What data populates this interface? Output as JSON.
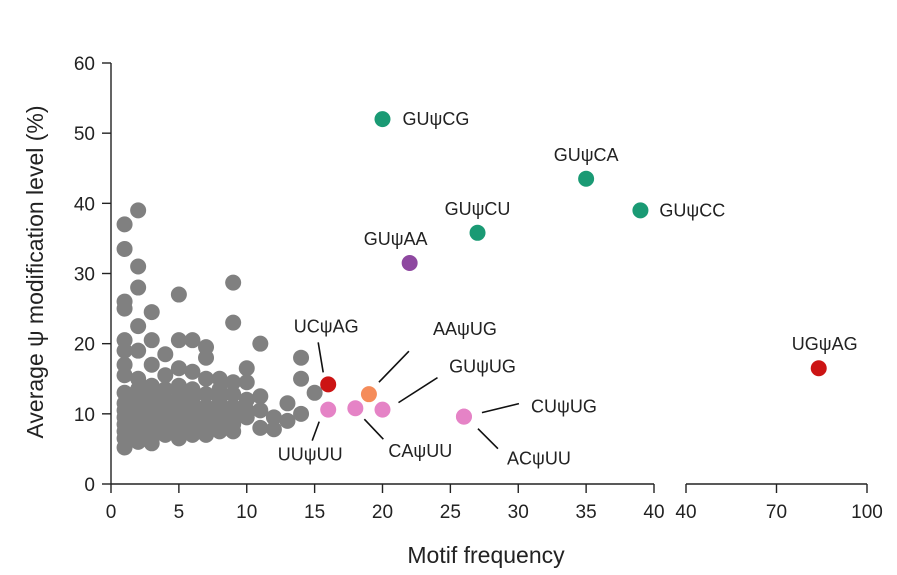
{
  "chart_data": {
    "type": "scatter",
    "xlabel": "Motif frequency",
    "ylabel": "Average ψ modification level (%)",
    "ylim": [
      0,
      60
    ],
    "yticks": [
      0,
      10,
      20,
      30,
      40,
      50,
      60
    ],
    "x_axis_segments": [
      {
        "range": [
          0,
          40
        ],
        "ticks": [
          0,
          5,
          10,
          15,
          20,
          25,
          30,
          35,
          40
        ]
      },
      {
        "range": [
          40,
          100
        ],
        "ticks": [
          40,
          70,
          100
        ]
      }
    ],
    "colors": {
      "background": "#808080",
      "GUψN": "#1a9a74",
      "GUψAA": "#8e48a0",
      "red": "#cc1414",
      "orange": "#f58c5a",
      "pink": "#e583c6"
    },
    "background_points": [
      {
        "x": 1,
        "y": 37
      },
      {
        "x": 2,
        "y": 39
      },
      {
        "x": 1,
        "y": 33.5
      },
      {
        "x": 2,
        "y": 31
      },
      {
        "x": 2,
        "y": 28
      },
      {
        "x": 1,
        "y": 26
      },
      {
        "x": 1,
        "y": 25
      },
      {
        "x": 3,
        "y": 24.5
      },
      {
        "x": 5,
        "y": 27
      },
      {
        "x": 9,
        "y": 28.7
      },
      {
        "x": 9,
        "y": 23
      },
      {
        "x": 2,
        "y": 22.5
      },
      {
        "x": 1,
        "y": 20.5
      },
      {
        "x": 3,
        "y": 20.5
      },
      {
        "x": 5,
        "y": 20.5
      },
      {
        "x": 6,
        "y": 20.5
      },
      {
        "x": 7,
        "y": 19.5
      },
      {
        "x": 11,
        "y": 20
      },
      {
        "x": 1,
        "y": 19
      },
      {
        "x": 2,
        "y": 19
      },
      {
        "x": 4,
        "y": 18.5
      },
      {
        "x": 7,
        "y": 18
      },
      {
        "x": 14,
        "y": 18
      },
      {
        "x": 1,
        "y": 17
      },
      {
        "x": 3,
        "y": 17
      },
      {
        "x": 5,
        "y": 16.5
      },
      {
        "x": 6,
        "y": 16
      },
      {
        "x": 10,
        "y": 16.5
      },
      {
        "x": 1,
        "y": 15.5
      },
      {
        "x": 2,
        "y": 15
      },
      {
        "x": 4,
        "y": 15.5
      },
      {
        "x": 7,
        "y": 15
      },
      {
        "x": 8,
        "y": 15
      },
      {
        "x": 14,
        "y": 15
      },
      {
        "x": 9,
        "y": 14.5
      },
      {
        "x": 10,
        "y": 14.5
      },
      {
        "x": 3,
        "y": 14
      },
      {
        "x": 5,
        "y": 14
      },
      {
        "x": 2,
        "y": 13.5
      },
      {
        "x": 4,
        "y": 13.5
      },
      {
        "x": 6,
        "y": 13.5
      },
      {
        "x": 8,
        "y": 13.5
      },
      {
        "x": 1,
        "y": 13
      },
      {
        "x": 3,
        "y": 13
      },
      {
        "x": 7,
        "y": 12.8
      },
      {
        "x": 9,
        "y": 12.8
      },
      {
        "x": 11,
        "y": 12.5
      },
      {
        "x": 15,
        "y": 13
      },
      {
        "x": 2,
        "y": 12.5
      },
      {
        "x": 5,
        "y": 12.5
      },
      {
        "x": 4,
        "y": 12
      },
      {
        "x": 6,
        "y": 12
      },
      {
        "x": 8,
        "y": 12
      },
      {
        "x": 10,
        "y": 12
      },
      {
        "x": 1,
        "y": 11.5
      },
      {
        "x": 3,
        "y": 11.5
      },
      {
        "x": 13,
        "y": 11.5
      },
      {
        "x": 2,
        "y": 11
      },
      {
        "x": 4,
        "y": 11
      },
      {
        "x": 5,
        "y": 11
      },
      {
        "x": 7,
        "y": 11
      },
      {
        "x": 9,
        "y": 11
      },
      {
        "x": 11,
        "y": 10.5
      },
      {
        "x": 1,
        "y": 10.5
      },
      {
        "x": 3,
        "y": 10.5
      },
      {
        "x": 6,
        "y": 10.5
      },
      {
        "x": 8,
        "y": 10.5
      },
      {
        "x": 10,
        "y": 10.5
      },
      {
        "x": 2,
        "y": 10
      },
      {
        "x": 4,
        "y": 10
      },
      {
        "x": 5,
        "y": 10
      },
      {
        "x": 7,
        "y": 10
      },
      {
        "x": 9,
        "y": 10
      },
      {
        "x": 14,
        "y": 10
      },
      {
        "x": 1,
        "y": 9.5
      },
      {
        "x": 3,
        "y": 9.5
      },
      {
        "x": 12,
        "y": 9.5
      },
      {
        "x": 13,
        "y": 9
      },
      {
        "x": 2,
        "y": 9
      },
      {
        "x": 4,
        "y": 9
      },
      {
        "x": 6,
        "y": 9
      },
      {
        "x": 8,
        "y": 9
      },
      {
        "x": 10,
        "y": 9.5
      },
      {
        "x": 1,
        "y": 8.5
      },
      {
        "x": 3,
        "y": 8.5
      },
      {
        "x": 5,
        "y": 8.5
      },
      {
        "x": 7,
        "y": 8.5
      },
      {
        "x": 9,
        "y": 8.5
      },
      {
        "x": 2,
        "y": 8
      },
      {
        "x": 4,
        "y": 8
      },
      {
        "x": 6,
        "y": 8
      },
      {
        "x": 11,
        "y": 8
      },
      {
        "x": 12,
        "y": 7.8
      },
      {
        "x": 1,
        "y": 7.5
      },
      {
        "x": 3,
        "y": 7.5
      },
      {
        "x": 5,
        "y": 7.5
      },
      {
        "x": 8,
        "y": 7.5
      },
      {
        "x": 9,
        "y": 7.5
      },
      {
        "x": 2,
        "y": 7
      },
      {
        "x": 4,
        "y": 7
      },
      {
        "x": 6,
        "y": 7
      },
      {
        "x": 7,
        "y": 7
      },
      {
        "x": 1,
        "y": 6.5
      },
      {
        "x": 3,
        "y": 6.5
      },
      {
        "x": 5,
        "y": 6.5
      },
      {
        "x": 2,
        "y": 6
      },
      {
        "x": 3,
        "y": 5.8
      },
      {
        "x": 1,
        "y": 5.2
      }
    ],
    "labeled_points": [
      {
        "label": "GUψCG",
        "x": 20,
        "y": 52,
        "color": "GUψN"
      },
      {
        "label": "GUψCA",
        "x": 35,
        "y": 43.5,
        "color": "GUψN"
      },
      {
        "label": "GUψCC",
        "x": 39,
        "y": 39,
        "color": "GUψN"
      },
      {
        "label": "GUψCU",
        "x": 27,
        "y": 35.8,
        "color": "GUψN"
      },
      {
        "label": "GUψAA",
        "x": 22,
        "y": 31.5,
        "color": "GUψAA"
      },
      {
        "label": "UCψAG",
        "x": 16,
        "y": 14.2,
        "color": "red"
      },
      {
        "label": "AAψUG",
        "x": 19,
        "y": 12.8,
        "color": "orange"
      },
      {
        "label": "GUψUG",
        "x": 20,
        "y": 10.6,
        "color": "pink"
      },
      {
        "label": "UUψUU",
        "x": 16,
        "y": 10.6,
        "color": "pink"
      },
      {
        "label": "CAψUU",
        "x": 18,
        "y": 10.8,
        "color": "pink"
      },
      {
        "label": "CUψUG",
        "x": 26,
        "y": 9.6,
        "color": "pink"
      },
      {
        "label": "ACψUU",
        "x": 26,
        "y": 9.6,
        "color": "pink"
      },
      {
        "label": "UGψAG",
        "x": 84,
        "y": 16.5,
        "color": "red"
      }
    ]
  }
}
